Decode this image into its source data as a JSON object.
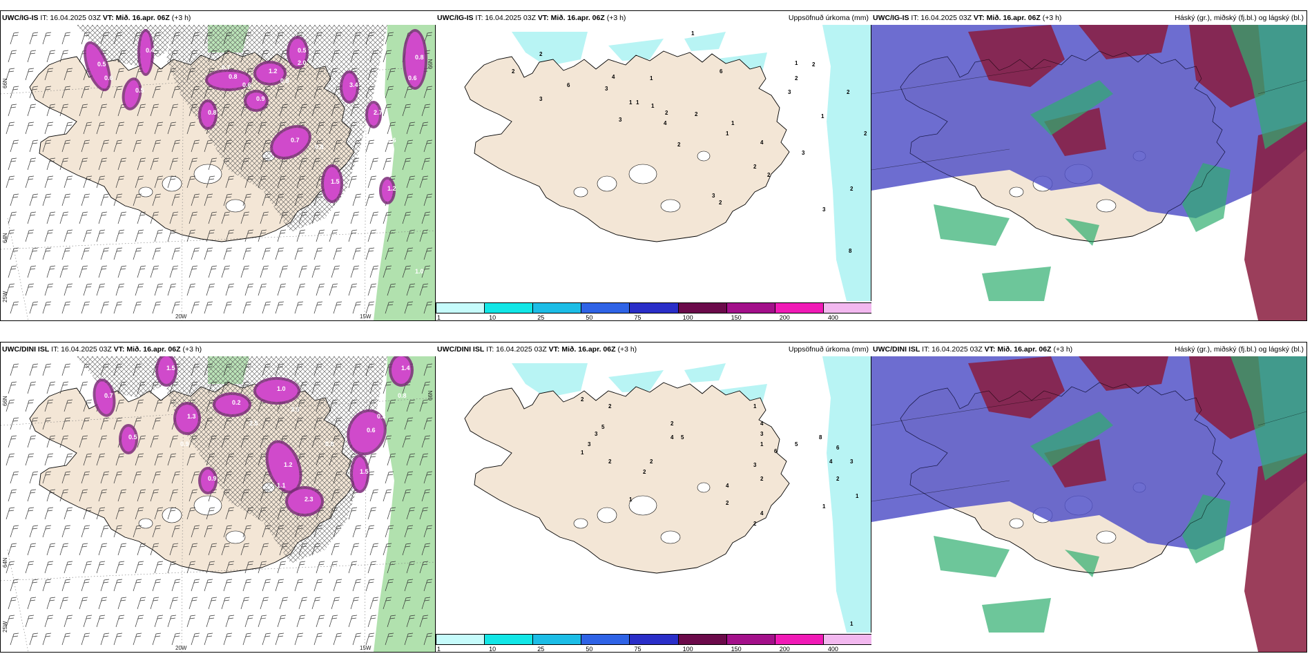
{
  "colors": {
    "land": "#f3e6d6",
    "sea": "#ffffff",
    "precip_light": "#b8f4f4",
    "snow_purple": "#7a2a78",
    "snow_magenta": "#d04acb",
    "rain_green": "#9ed99a",
    "cloud_high": "#8a1c3e",
    "cloud_mid": "#5454c8",
    "cloud_low": "#2fae6f"
  },
  "panels": [
    {
      "id": "top-left",
      "model": "UWC/IG-IS",
      "it": "16.04.2025 03Z",
      "vt_label": "VT:",
      "vt": "Mið. 16.apr. 06Z",
      "lead": "(+3 h)",
      "right_title": "",
      "lon_labels": [
        "20W",
        "15W"
      ],
      "lat_labels": [
        "66N",
        "64N",
        "25W"
      ],
      "right_lat": "66N",
      "values": [
        "0.5",
        "0.4",
        "0.5",
        "0.8",
        "1.2",
        "0.7",
        "0.8",
        "0.9",
        "1.5",
        "3.4",
        "2.7",
        "0.8",
        "1.2",
        "0.5",
        "0.6",
        "0.6",
        "0.8",
        "0.7",
        "0.6",
        "1.0",
        "0.7",
        "0.5",
        "0.6",
        "2.0"
      ]
    },
    {
      "id": "top-middle",
      "model": "UWC/IG-IS",
      "it": "16.04.2025 03Z",
      "vt_label": "VT:",
      "vt": "Mið. 16.apr. 06Z",
      "lead": "(+3 h)",
      "right_title": "Uppsöfnuð úrkoma (mm)",
      "values": [
        "1",
        "2",
        "2",
        "3",
        "6",
        "3",
        "1",
        "3",
        "1",
        "2",
        "4",
        "4",
        "6",
        "2",
        "1",
        "1",
        "1",
        "3",
        "3",
        "8",
        "2",
        "2",
        "2",
        "3",
        "2",
        "2",
        "3",
        "2",
        "2",
        "2",
        "1",
        "4",
        "2",
        "1",
        "1"
      ],
      "colorbar_ticks": [
        "1",
        "10",
        "25",
        "50",
        "75",
        "100",
        "150",
        "200",
        "400"
      ]
    },
    {
      "id": "top-right",
      "model": "UWC/IG-IS",
      "it": "16.04.2025 03Z",
      "vt_label": "VT:",
      "vt": "Mið. 16.apr. 06Z",
      "lead": "(+3 h)",
      "right_title": "Háský (gr.), miðský (fj.bl.) og lágský (bl.)"
    },
    {
      "id": "bottom-left",
      "model": "UWC/DINI ISL",
      "it": "16.04.2025 03Z",
      "vt_label": "VT:",
      "vt": "Mið. 16.apr. 06Z",
      "lead": "(+3 h)",
      "right_title": "",
      "lon_labels": [
        "20W",
        "15W"
      ],
      "lat_labels": [
        "66N",
        "64N",
        "25W"
      ],
      "right_lat": "66N",
      "values": [
        "0.7",
        "1.5",
        "1.3",
        "0.2",
        "1.0",
        "1.2",
        "2.3",
        "0.6",
        "1.5",
        "0.9",
        "1.4",
        "0.5",
        "2.5",
        "3.5",
        "0.8",
        "0.5",
        "1.1",
        "0.8",
        "0.9"
      ]
    },
    {
      "id": "bottom-middle",
      "model": "UWC/DINI ISL",
      "it": "16.04.2025 03Z",
      "vt_label": "VT:",
      "vt": "Mið. 16.apr. 06Z",
      "lead": "(+3 h)",
      "right_title": "Uppsöfnuð úrkoma (mm)",
      "values": [
        "1",
        "2",
        "2",
        "5",
        "3",
        "3",
        "1",
        "2",
        "2",
        "4",
        "5",
        "4",
        "3",
        "1",
        "6",
        "2",
        "1",
        "4",
        "2",
        "3",
        "2",
        "5",
        "8",
        "6",
        "4",
        "1",
        "3",
        "2",
        "4",
        "2",
        "2",
        "1",
        "1"
      ],
      "colorbar_ticks": [
        "1",
        "10",
        "25",
        "50",
        "75",
        "100",
        "150",
        "200",
        "400"
      ]
    },
    {
      "id": "bottom-right",
      "model": "UWC/DINI ISL",
      "it": "16.04.2025 03Z",
      "vt_label": "VT:",
      "vt": "Mið. 16.apr. 06Z",
      "lead": "(+3 h)",
      "right_title": "Háský (gr.), miðský (fj.bl.) og lágský (bl.)"
    }
  ],
  "colorbar_colors": [
    "#c6fbfb",
    "#12e6e6",
    "#1cbde6",
    "#2f63e6",
    "#2a2ec8",
    "#6b0a4a",
    "#a3108a",
    "#f01ab6",
    "#f2b8ef"
  ]
}
